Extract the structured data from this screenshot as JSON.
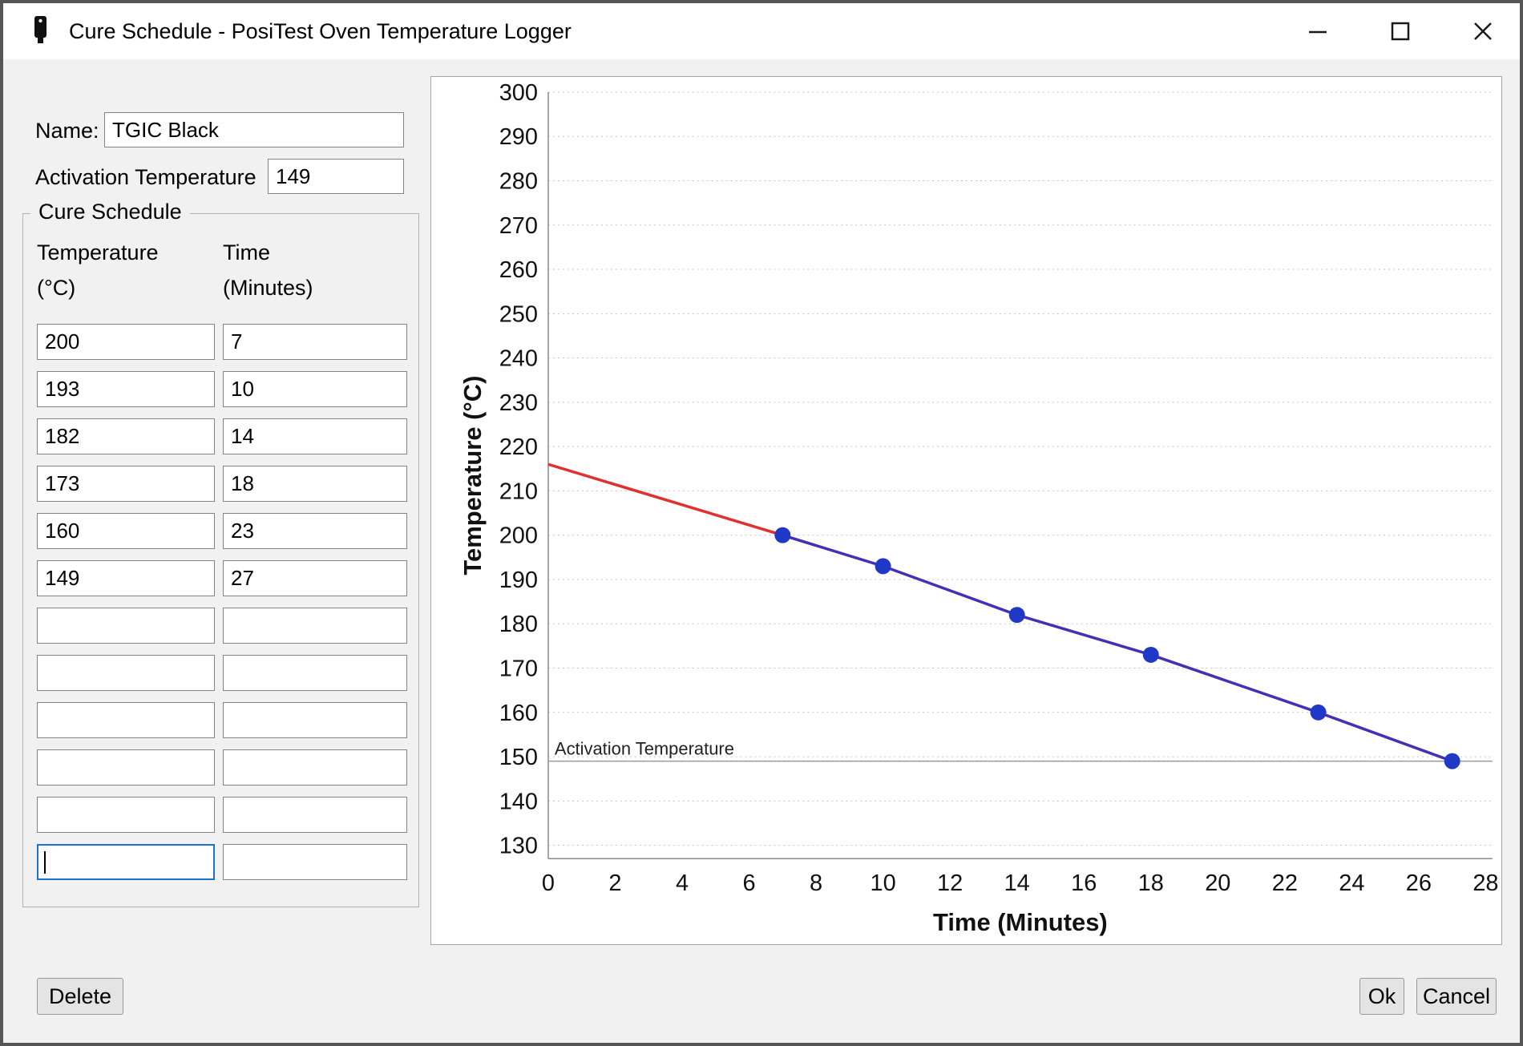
{
  "window": {
    "title": "Cure Schedule - PosiTest Oven Temperature Logger"
  },
  "form": {
    "name_label": "Name:",
    "name_value": "TGIC Black",
    "activation_label": "Activation Temperature",
    "activation_value": "149"
  },
  "schedule": {
    "group_label": "Cure Schedule",
    "col1_header_line1": "Temperature",
    "col1_header_line2": "(°C)",
    "col2_header_line1": "Time",
    "col2_header_line2": "(Minutes)",
    "rows": [
      {
        "temp": "200",
        "time": "7"
      },
      {
        "temp": "193",
        "time": "10"
      },
      {
        "temp": "182",
        "time": "14"
      },
      {
        "temp": "173",
        "time": "18"
      },
      {
        "temp": "160",
        "time": "23"
      },
      {
        "temp": "149",
        "time": "27"
      },
      {
        "temp": "",
        "time": ""
      },
      {
        "temp": "",
        "time": ""
      },
      {
        "temp": "",
        "time": ""
      },
      {
        "temp": "",
        "time": ""
      },
      {
        "temp": "",
        "time": ""
      },
      {
        "temp": "",
        "time": ""
      }
    ],
    "focused_row": 11,
    "focused_field": "temp"
  },
  "buttons": {
    "delete": "Delete",
    "ok": "Ok",
    "cancel": "Cancel"
  },
  "chart_data": {
    "type": "line",
    "title": "",
    "xlabel": "Time (Minutes)",
    "ylabel": "Temperature (°C)",
    "xlim": [
      0,
      28
    ],
    "ylim": [
      130,
      300
    ],
    "x_ticks": [
      0,
      2,
      4,
      6,
      8,
      10,
      12,
      14,
      16,
      18,
      20,
      22,
      24,
      26,
      28
    ],
    "y_ticks": [
      300,
      290,
      280,
      270,
      260,
      250,
      240,
      230,
      220,
      210,
      200,
      190,
      180,
      170,
      160,
      150,
      140,
      130
    ],
    "grid": "horizontal-dashed",
    "legend": "none",
    "series": [
      {
        "name": "ramp-extrapolation",
        "color": "#e03030",
        "show_points": false,
        "x": [
          0,
          7
        ],
        "y": [
          216,
          200
        ]
      },
      {
        "name": "cure-schedule",
        "color": "#4430b4",
        "point_color": "#2038c8",
        "show_points": true,
        "x": [
          7,
          10,
          14,
          18,
          23,
          27
        ],
        "y": [
          200,
          193,
          182,
          173,
          160,
          149
        ]
      }
    ],
    "activation_line": {
      "label": "Activation Temperature",
      "value": 149,
      "color": "#9a9a9a"
    }
  }
}
